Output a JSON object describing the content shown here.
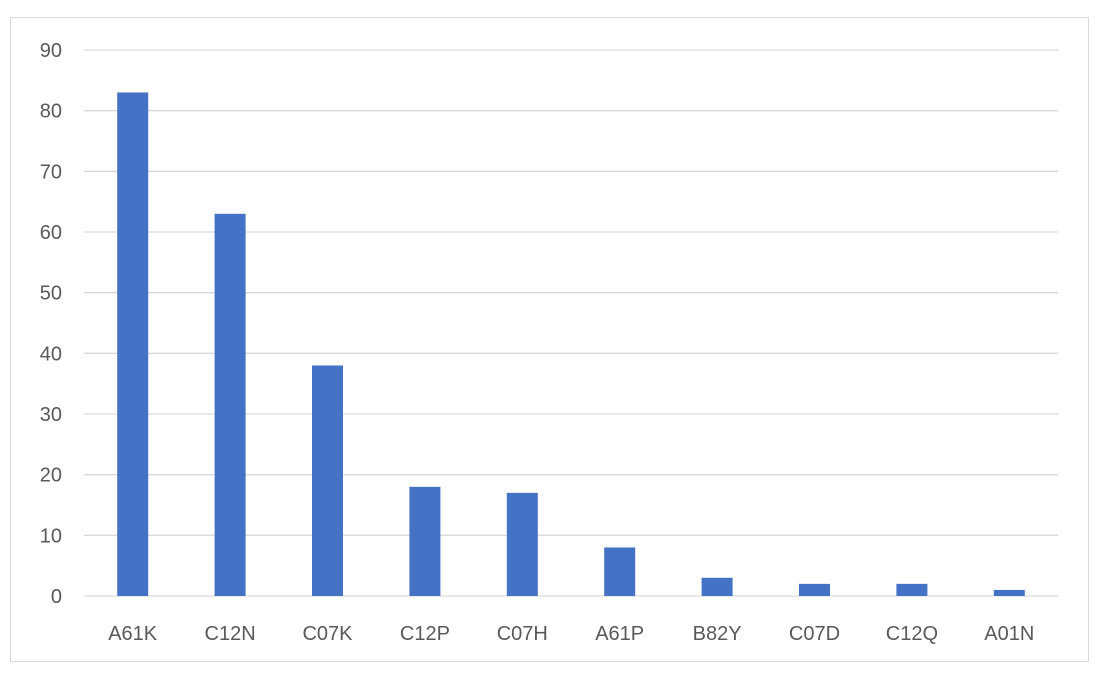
{
  "chart_data": {
    "type": "bar",
    "categories": [
      "A61K",
      "C12N",
      "C07K",
      "C12P",
      "C07H",
      "A61P",
      "B82Y",
      "C07D",
      "C12Q",
      "A01N"
    ],
    "values": [
      83,
      63,
      38,
      18,
      17,
      8,
      3,
      2,
      2,
      1
    ],
    "title": "",
    "xlabel": "",
    "ylabel": "",
    "ylim": [
      0,
      90
    ],
    "yticks": [
      0,
      10,
      20,
      30,
      40,
      50,
      60,
      70,
      80,
      90
    ],
    "grid": true,
    "legend": "none",
    "colors": {
      "bar": "#4472c4",
      "grid": "#d9d9d9",
      "text": "#595959"
    }
  }
}
